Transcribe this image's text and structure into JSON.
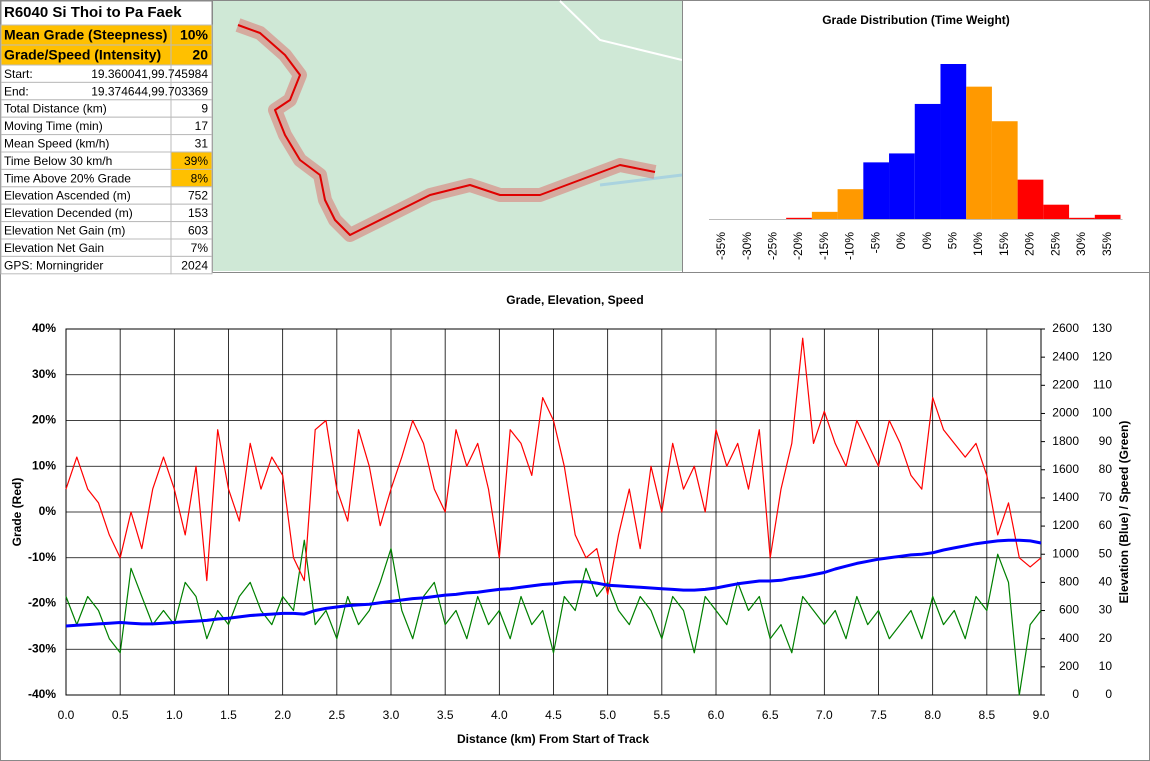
{
  "stats": {
    "title": "R6040 Si Thoi to Pa Faek",
    "rows": [
      [
        "Mean Grade (Steepness)",
        "10%"
      ],
      [
        "Grade/Speed (Intensity)",
        "20"
      ],
      [
        "Start:",
        "19.360041,99.745984"
      ],
      [
        "End:",
        "19.374644,99.703369"
      ],
      [
        "Total Distance (km)",
        "9"
      ],
      [
        "Moving Time (min)",
        "17"
      ],
      [
        "Mean Speed (km/h)",
        "31"
      ],
      [
        "Time Below 30 km/h",
        "39%"
      ],
      [
        "Time Above 20% Grade",
        "8%"
      ],
      [
        "Elevation Ascended (m)",
        "752"
      ],
      [
        "Elevation Decended (m)",
        "153"
      ],
      [
        "Elevation Net Gain (m)",
        "603"
      ],
      [
        "Elevation Net Gain",
        "7%"
      ],
      [
        "GPS: Morningrider",
        "2024"
      ]
    ],
    "highlight": [
      0,
      1,
      7,
      8
    ],
    "bold": [
      0,
      1
    ],
    "highlight_color": "#ffc000"
  },
  "chart_data": [
    {
      "type": "bar",
      "title": "Grade Distribution (Time Weight)",
      "categories": [
        "-35%",
        "-30%",
        "-25%",
        "-20%",
        "-15%",
        "-10%",
        "-5%",
        "0%",
        "0%",
        "5%",
        "10%",
        "15%",
        "20%",
        "25%",
        "30%",
        "35%"
      ],
      "values": [
        0,
        0,
        0,
        0.2,
        1.2,
        5,
        9.5,
        11,
        19.3,
        26,
        22.2,
        16.4,
        6.6,
        2.4,
        0.2,
        0.7
      ],
      "colors": [
        "#ff0000",
        "#ff0000",
        "#ff0000",
        "#ff0000",
        "#ff9900",
        "#ff9900",
        "#0000ff",
        "#0000ff",
        "#0000ff",
        "#0000ff",
        "#ff9900",
        "#ff9900",
        "#ff0000",
        "#ff0000",
        "#ff0000",
        "#ff0000"
      ]
    },
    {
      "type": "line",
      "title": "Grade, Elevation, Speed",
      "xlabel": "Distance (km) From Start of Track",
      "ylabel": "Grade (Red)",
      "y2label": "Elevation (Blue) / Speed (Green)",
      "x": [
        0,
        0.1,
        0.2,
        0.3,
        0.4,
        0.5,
        0.6,
        0.7,
        0.8,
        0.9,
        1,
        1.1,
        1.2,
        1.3,
        1.4,
        1.5,
        1.6,
        1.7,
        1.8,
        1.9,
        2,
        2.1,
        2.2,
        2.3,
        2.4,
        2.5,
        2.6,
        2.7,
        2.8,
        2.9,
        3,
        3.1,
        3.2,
        3.3,
        3.4,
        3.5,
        3.6,
        3.7,
        3.8,
        3.9,
        4,
        4.1,
        4.2,
        4.3,
        4.4,
        4.5,
        4.6,
        4.7,
        4.8,
        4.9,
        5,
        5.1,
        5.2,
        5.3,
        5.4,
        5.5,
        5.6,
        5.7,
        5.8,
        5.9,
        6,
        6.1,
        6.2,
        6.3,
        6.4,
        6.5,
        6.6,
        6.7,
        6.8,
        6.9,
        7,
        7.1,
        7.2,
        7.3,
        7.4,
        7.5,
        7.6,
        7.7,
        7.8,
        7.9,
        8,
        8.1,
        8.2,
        8.3,
        8.4,
        8.5,
        8.6,
        8.7,
        8.8,
        8.9,
        9
      ],
      "series": [
        {
          "color": "#ff0000",
          "values": [
            5,
            12,
            5,
            2,
            -5,
            -10,
            0,
            -8,
            5,
            12,
            5,
            -5,
            10,
            -15,
            18,
            5,
            -2,
            15,
            5,
            12,
            8,
            -10,
            -15,
            18,
            20,
            5,
            -2,
            18,
            10,
            -3,
            5,
            12,
            20,
            15,
            5,
            0,
            18,
            10,
            15,
            5,
            -10,
            18,
            15,
            8,
            25,
            20,
            10,
            -5,
            -10,
            -8,
            -18,
            -5,
            5,
            -8,
            10,
            0,
            15,
            5,
            10,
            0,
            18,
            10,
            15,
            5,
            18,
            -10,
            5,
            15,
            38,
            15,
            22,
            15,
            10,
            20,
            15,
            10,
            20,
            15,
            8,
            5,
            25,
            18,
            15,
            12,
            15,
            8,
            -5,
            2,
            -10,
            -12,
            -10
          ]
        },
        {
          "color": "#0000ff",
          "axis": "y2",
          "values": [
            490,
            495,
            500,
            505,
            510,
            515,
            510,
            505,
            505,
            510,
            515,
            520,
            525,
            530,
            540,
            545,
            555,
            565,
            570,
            575,
            580,
            580,
            575,
            600,
            615,
            625,
            635,
            640,
            645,
            655,
            665,
            675,
            685,
            690,
            700,
            710,
            715,
            725,
            730,
            740,
            750,
            755,
            765,
            775,
            785,
            790,
            800,
            805,
            805,
            795,
            780,
            775,
            770,
            765,
            760,
            755,
            750,
            745,
            745,
            750,
            760,
            775,
            790,
            800,
            810,
            810,
            815,
            830,
            840,
            855,
            870,
            895,
            915,
            935,
            950,
            965,
            975,
            985,
            995,
            1000,
            1010,
            1030,
            1045,
            1060,
            1075,
            1085,
            1095,
            1100,
            1100,
            1095,
            1080
          ]
        },
        {
          "color": "#008000",
          "axis": "y3",
          "values": [
            35,
            25,
            35,
            30,
            20,
            15,
            45,
            35,
            25,
            30,
            25,
            40,
            35,
            20,
            30,
            25,
            35,
            40,
            30,
            25,
            35,
            30,
            55,
            25,
            30,
            20,
            35,
            25,
            30,
            40,
            52,
            30,
            20,
            35,
            40,
            25,
            30,
            20,
            35,
            25,
            30,
            20,
            35,
            25,
            30,
            15,
            35,
            30,
            45,
            35,
            40,
            30,
            25,
            35,
            30,
            20,
            35,
            30,
            15,
            35,
            30,
            25,
            40,
            30,
            35,
            20,
            25,
            15,
            35,
            30,
            25,
            30,
            20,
            35,
            25,
            30,
            20,
            25,
            30,
            20,
            35,
            25,
            30,
            20,
            35,
            30,
            50,
            40,
            0,
            25,
            30
          ]
        }
      ],
      "xlim": [
        0,
        9
      ],
      "xticks": [
        {
          "value": 0,
          "label": "0.0"
        },
        0.5,
        {
          "value": 1,
          "label": "1.0"
        },
        1.5,
        {
          "value": 2,
          "label": "2.0"
        },
        2.5,
        {
          "value": 3,
          "label": "3.0"
        },
        3.5,
        {
          "value": 4,
          "label": "4.0"
        },
        4.5,
        {
          "value": 5,
          "label": "5.0"
        },
        5.5,
        {
          "value": 6,
          "label": "6.0"
        },
        6.5,
        {
          "value": 7,
          "label": "7.0"
        },
        7.5,
        {
          "value": 8,
          "label": "8.0"
        },
        8.5,
        {
          "value": 9,
          "label": "9.0"
        }
      ],
      "ylim": [
        -40,
        40
      ],
      "yticks": [
        {
          "value": -40,
          "label": "-40%"
        },
        {
          "value": -30,
          "label": "-30%"
        },
        {
          "value": -20,
          "label": "-20%"
        },
        {
          "value": -10,
          "label": "-10%"
        },
        {
          "value": 0,
          "label": "0%"
        },
        {
          "value": 10,
          "label": "10%"
        },
        {
          "value": 20,
          "label": "20%"
        },
        {
          "value": 30,
          "label": "30%"
        },
        {
          "value": 40,
          "label": "40%"
        }
      ],
      "y2lim": [
        0,
        2600
      ],
      "y2ticks": [
        0,
        200,
        400,
        600,
        800,
        1000,
        1200,
        1400,
        1600,
        1800,
        2000,
        2200,
        2400,
        2600
      ],
      "y3lim": [
        0,
        130
      ],
      "y3ticks": [
        0,
        10,
        20,
        30,
        40,
        50,
        60,
        70,
        80,
        90,
        100,
        110,
        120,
        130
      ],
      "grid": true
    }
  ]
}
